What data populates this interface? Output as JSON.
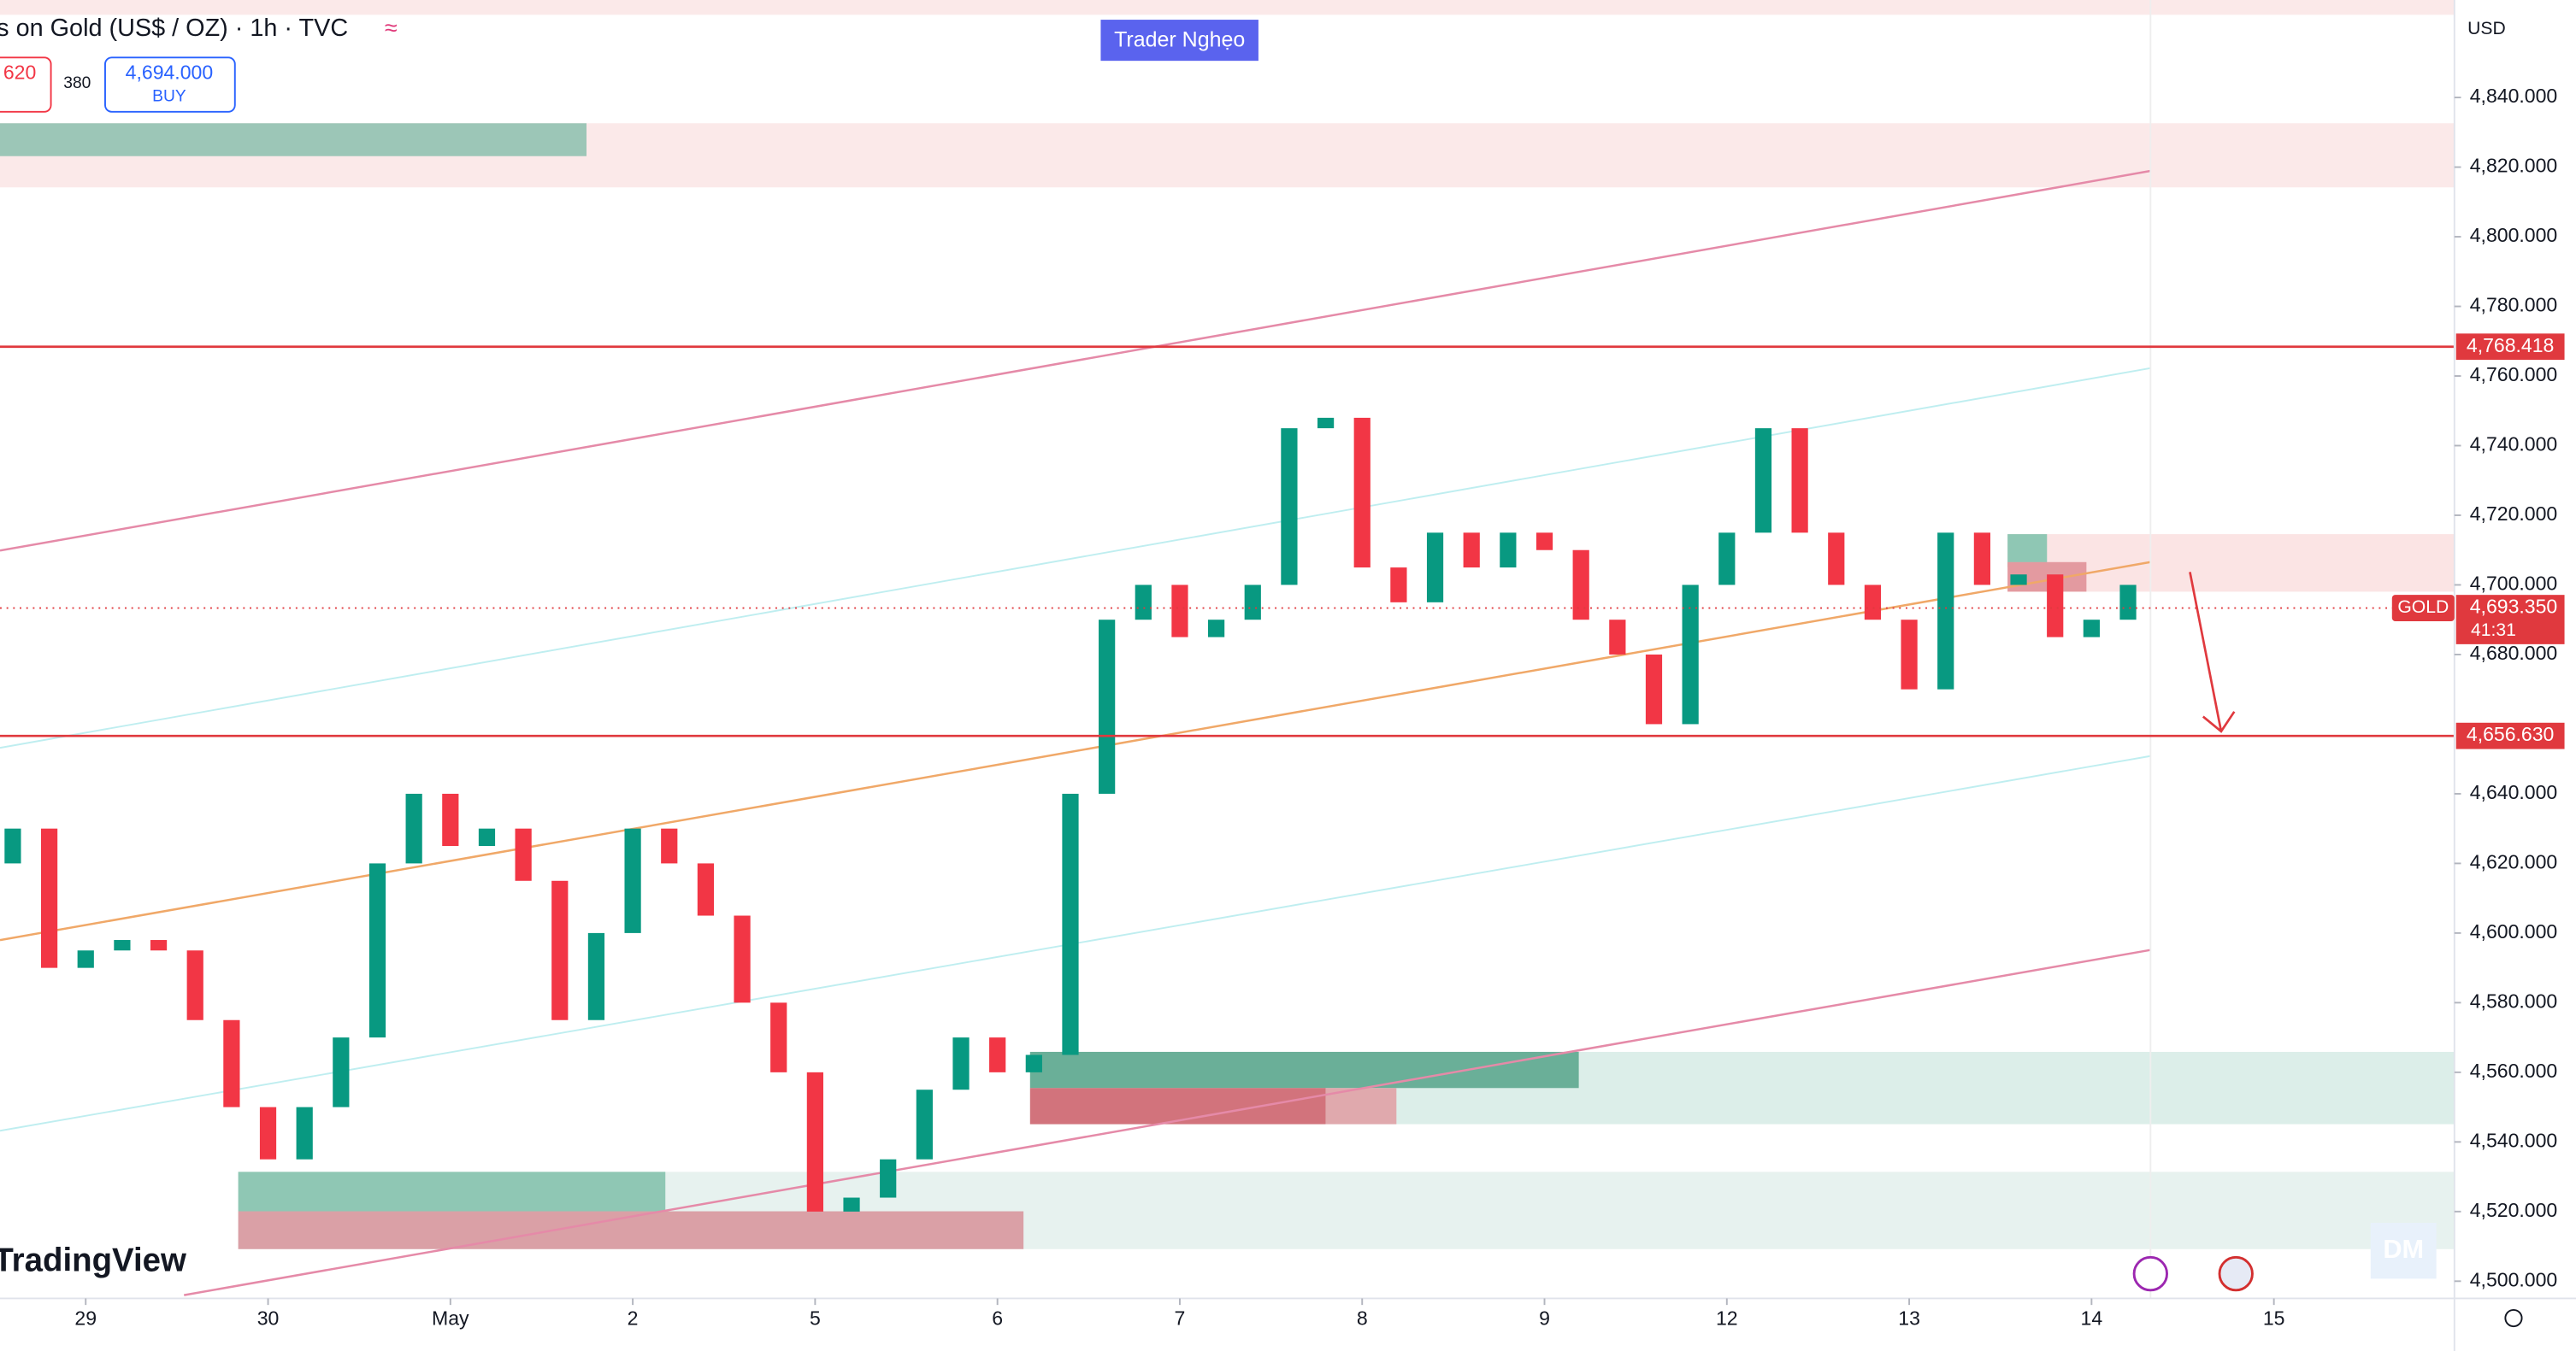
{
  "header": {
    "title": "s on Gold (US$ / OZ) · 1h · TVC",
    "indicator_icon": "≈",
    "sell_price": "620",
    "spread": "380",
    "buy_price": "4,694.000",
    "buy_label": "BUY",
    "badge": "Trader Nghẹo",
    "currency": "USD",
    "logo": "TradingView",
    "watermark": "DM"
  },
  "chart_data": {
    "type": "candlestick",
    "up_color": "#089981",
    "down_color": "#f23645",
    "x": [
      -0.4,
      -0.2,
      0,
      0.2,
      0.4,
      0.6,
      0.8,
      1,
      1.2,
      1.4,
      1.6,
      1.8,
      2,
      2.2,
      2.4,
      2.6,
      2.8,
      3,
      3.2,
      3.4,
      3.6,
      3.8,
      4,
      4.2,
      4.4,
      4.6,
      4.8,
      5,
      5.2,
      5.4,
      5.6,
      5.8,
      6,
      6.2,
      6.4,
      6.6,
      6.8,
      7,
      7.2,
      7.4,
      7.6,
      7.8,
      8,
      8.2,
      8.4,
      8.6,
      8.8,
      9,
      9.2,
      9.4,
      9.6,
      9.8,
      10,
      10.2,
      10.4,
      10.6,
      10.8,
      11,
      11.2
    ],
    "open": [
      4620,
      4630,
      4590,
      4595,
      4598,
      4595,
      4575,
      4550,
      4535,
      4550,
      4570,
      4620,
      4640,
      4625,
      4630,
      4615,
      4575,
      4600,
      4630,
      4620,
      4605,
      4580,
      4560,
      4520,
      4524,
      4535,
      4555,
      4570,
      4560,
      4565,
      4640,
      4690,
      4700,
      4685,
      4690,
      4700,
      4745,
      4748,
      4705,
      4695,
      4715,
      4705,
      4715,
      4710,
      4690,
      4680,
      4660,
      4700,
      4715,
      4745,
      4715,
      4700,
      4690,
      4670,
      4715,
      4700,
      4703,
      4685,
      4690
    ],
    "close": [
      4630,
      4590,
      4595,
      4598,
      4595,
      4575,
      4550,
      4535,
      4550,
      4570,
      4620,
      4640,
      4625,
      4630,
      4615,
      4575,
      4600,
      4630,
      4620,
      4605,
      4580,
      4560,
      4520,
      4524,
      4535,
      4555,
      4570,
      4560,
      4565,
      4640,
      4690,
      4700,
      4685,
      4690,
      4700,
      4745,
      4748,
      4705,
      4695,
      4715,
      4705,
      4715,
      4710,
      4690,
      4680,
      4660,
      4700,
      4715,
      4745,
      4715,
      4700,
      4690,
      4670,
      4715,
      4700,
      4703,
      4685,
      4690,
      4700
    ],
    "xlim": [
      -0.47,
      12.99
    ],
    "xticks": [
      {
        "value": 0,
        "label": "29"
      },
      {
        "value": 1,
        "label": "30"
      },
      {
        "value": 2,
        "label": "May"
      },
      {
        "value": 3,
        "label": "2"
      },
      {
        "value": 4,
        "label": "5"
      },
      {
        "value": 5,
        "label": "6"
      },
      {
        "value": 6,
        "label": "7"
      },
      {
        "value": 7,
        "label": "8"
      },
      {
        "value": 8,
        "label": "9"
      },
      {
        "value": 9,
        "label": "12"
      },
      {
        "value": 10,
        "label": "13"
      },
      {
        "value": 11,
        "label": "14"
      },
      {
        "value": 12,
        "label": "15"
      }
    ],
    "ylim": [
      4496,
      4868
    ],
    "yticks": [
      {
        "value": 4500,
        "label": "4,500.000"
      },
      {
        "value": 4520,
        "label": "4,520.000"
      },
      {
        "value": 4540,
        "label": "4,540.000"
      },
      {
        "value": 4560,
        "label": "4,560.000"
      },
      {
        "value": 4580,
        "label": "4,580.000"
      },
      {
        "value": 4600,
        "label": "4,600.000"
      },
      {
        "value": 4620,
        "label": "4,620.000"
      },
      {
        "value": 4640,
        "label": "4,640.000"
      },
      {
        "value": 4680,
        "label": "4,680.000"
      },
      {
        "value": 4700,
        "label": "4,700.000"
      },
      {
        "value": 4720,
        "label": "4,720.000"
      },
      {
        "value": 4740,
        "label": "4,740.000"
      },
      {
        "value": 4760,
        "label": "4,760.000"
      },
      {
        "value": 4780,
        "label": "4,780.000"
      },
      {
        "value": 4800,
        "label": "4,800.000"
      },
      {
        "value": 4820,
        "label": "4,820.000"
      },
      {
        "value": 4840,
        "label": "4,840.000"
      }
    ],
    "levels": [
      {
        "value": 4768.418,
        "label": "4,768.418"
      },
      {
        "value": 4656.63,
        "label": "4,656.630"
      }
    ],
    "current_price": {
      "value": 4693.35,
      "label": "4,693.350"
    },
    "symbol": "GOLD",
    "countdown": "41:31"
  }
}
